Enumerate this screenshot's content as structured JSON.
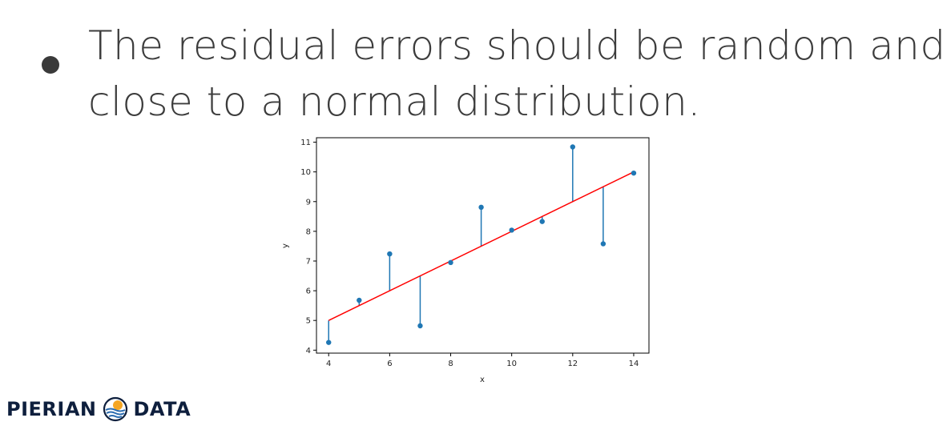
{
  "slide": {
    "bullet_lines": [
      "The residual errors should be random and",
      "close to a normal distribution."
    ]
  },
  "logo": {
    "left_text": "PIERIAN",
    "right_text": "DATA",
    "icon": "sun-over-waves-icon",
    "colors": {
      "navy": "#0e1f3d",
      "orange": "#f5a623",
      "blue": "#2b6cb0"
    }
  },
  "chart_data": {
    "type": "scatter",
    "title": "",
    "xlabel": "x",
    "ylabel": "y",
    "xlim": [
      3.6,
      14.5
    ],
    "ylim": [
      3.9,
      11.15
    ],
    "xticks": [
      4,
      6,
      8,
      10,
      12,
      14
    ],
    "yticks": [
      4,
      5,
      6,
      7,
      8,
      9,
      10,
      11
    ],
    "points": {
      "x": [
        4,
        5,
        6,
        7,
        8,
        9,
        10,
        11,
        12,
        13,
        14
      ],
      "y": [
        4.26,
        5.68,
        7.24,
        4.82,
        6.95,
        8.81,
        8.04,
        8.33,
        10.84,
        7.58,
        9.96
      ]
    },
    "fit_line": {
      "slope": 0.5,
      "intercept": 3.0,
      "color": "#ff0000"
    },
    "colors": {
      "points": "#1f77b4",
      "residuals": "#1f77b4"
    }
  }
}
